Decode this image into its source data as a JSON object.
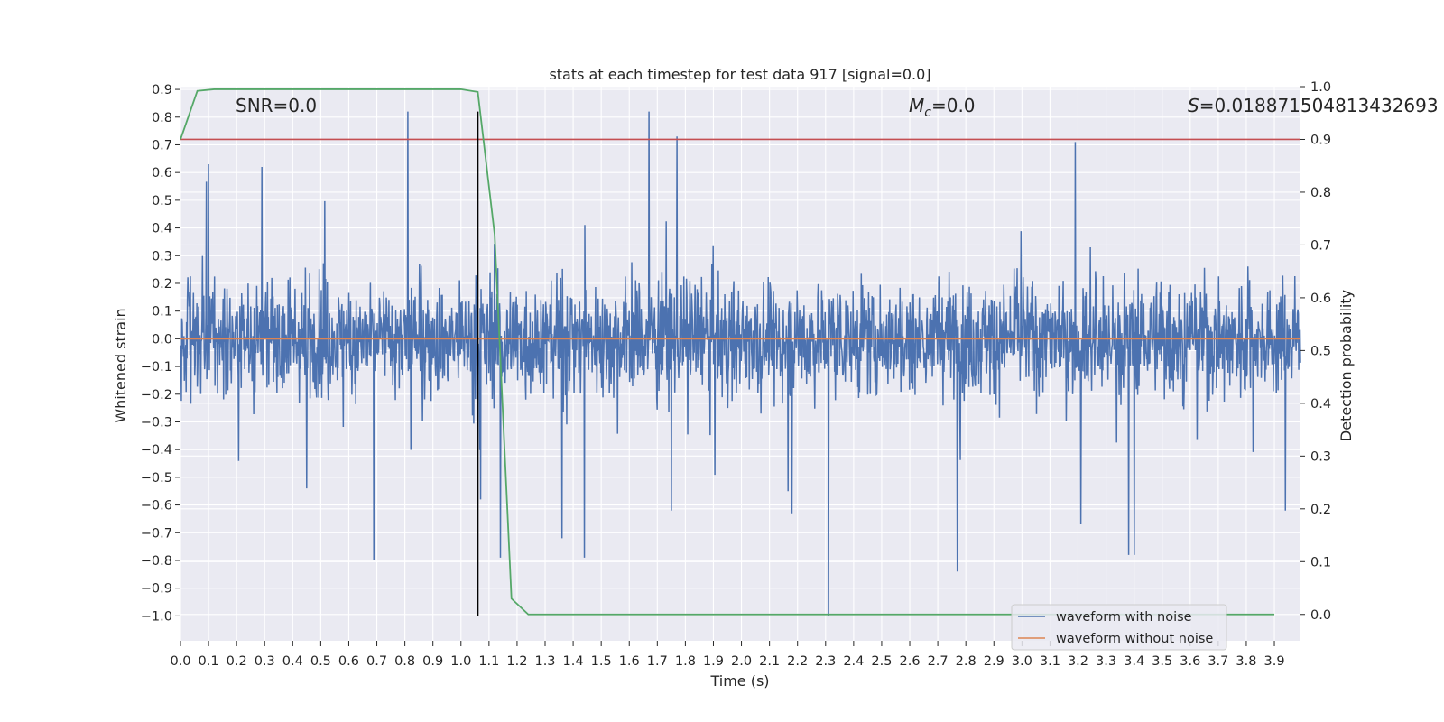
{
  "chart_data": {
    "type": "line",
    "title": "stats at each timestep for test data 917 [signal=0.0]",
    "xlabel": "Time (s)",
    "ylabel": "Whitened strain",
    "y2label": "Detection probability",
    "xlim": [
      0.0,
      3.99
    ],
    "ylim": [
      -1.09,
      0.91
    ],
    "y2lim": [
      -0.05,
      1.0
    ],
    "x_ticks": [
      "0.0",
      "0.1",
      "0.2",
      "0.3",
      "0.4",
      "0.5",
      "0.6",
      "0.7",
      "0.8",
      "0.9",
      "1.0",
      "1.1",
      "1.2",
      "1.3",
      "1.4",
      "1.5",
      "1.6",
      "1.7",
      "1.8",
      "1.9",
      "2.0",
      "2.1",
      "2.2",
      "2.3",
      "2.4",
      "2.5",
      "2.6",
      "2.7",
      "2.8",
      "2.9",
      "3.0",
      "3.1",
      "3.2",
      "3.3",
      "3.4",
      "3.5",
      "3.6",
      "3.7",
      "3.8",
      "3.9"
    ],
    "y_ticks": [
      "0.9",
      "0.8",
      "0.7",
      "0.6",
      "0.5",
      "0.4",
      "0.3",
      "0.2",
      "0.1",
      "0.0",
      "−0.1",
      "−0.2",
      "−0.3",
      "−0.4",
      "−0.5",
      "−0.6",
      "−0.7",
      "−0.8",
      "−0.9",
      "−1.0"
    ],
    "y2_ticks": [
      "0.0",
      "0.1",
      "0.2",
      "0.3",
      "0.4",
      "0.5",
      "0.6",
      "0.7",
      "0.8",
      "0.9",
      "1.0"
    ],
    "annotations": {
      "snr": "SNR=0.0",
      "mc_symbol": "M",
      "mc_sub": "c",
      "mc_value": "=0.0",
      "s_symbol": "S",
      "s_value": "=0.018871504813432693"
    },
    "series": [
      {
        "name": "waveform with noise",
        "color": "#4c72b0",
        "description": "dense whitened noise trace, typical range ±0.3, occasional spikes",
        "x_range": [
          0.0,
          3.99
        ],
        "spikes": [
          {
            "x": 0.1,
            "y": 0.63
          },
          {
            "x": 0.29,
            "y": 0.62
          },
          {
            "x": 0.81,
            "y": 0.82
          },
          {
            "x": 1.67,
            "y": 0.82
          },
          {
            "x": 1.77,
            "y": 0.73
          },
          {
            "x": 3.19,
            "y": 0.71
          },
          {
            "x": 0.69,
            "y": -0.8
          },
          {
            "x": 1.07,
            "y": -0.58
          },
          {
            "x": 1.36,
            "y": -0.72
          },
          {
            "x": 1.44,
            "y": -0.79
          },
          {
            "x": 2.31,
            "y": -1.0
          },
          {
            "x": 2.77,
            "y": -0.84
          },
          {
            "x": 3.38,
            "y": -0.78
          },
          {
            "x": 3.4,
            "y": -0.78
          },
          {
            "x": 3.21,
            "y": -0.67
          },
          {
            "x": 2.18,
            "y": -0.63
          },
          {
            "x": 1.75,
            "y": -0.62
          },
          {
            "x": 1.14,
            "y": -0.79
          },
          {
            "x": 3.94,
            "y": -0.62
          },
          {
            "x": 0.45,
            "y": -0.54
          }
        ]
      },
      {
        "name": "waveform without noise",
        "color": "#dd8452",
        "x": [
          0.0,
          3.99
        ],
        "y": [
          0.0,
          0.0
        ]
      },
      {
        "name": "detection probability",
        "color": "#55a868",
        "axis": "right",
        "x": [
          0.0,
          0.06,
          0.12,
          0.5,
          1.0,
          1.06,
          1.12,
          1.18,
          1.24,
          1.3,
          3.5,
          3.6,
          3.7,
          3.8,
          3.9
        ],
        "y": [
          0.9,
          0.992,
          0.995,
          0.995,
          0.995,
          0.99,
          0.72,
          0.03,
          0.0,
          0.0,
          0.0,
          0.0,
          0.0,
          0.0,
          0.0
        ]
      }
    ],
    "threshold": {
      "axis": "right",
      "y": 0.9,
      "color": "#c44e52"
    },
    "vline": {
      "x": 1.06,
      "ymin": -1.0,
      "ymax": 0.82,
      "color": "#000000"
    },
    "legend": {
      "placement": "lower-right",
      "entries": [
        {
          "label": "waveform with noise",
          "color": "#4c72b0"
        },
        {
          "label": "waveform without noise",
          "color": "#dd8452"
        }
      ]
    },
    "style": {
      "background": "#eaeaf2",
      "grid": true,
      "grid_color": "#ffffff"
    }
  }
}
